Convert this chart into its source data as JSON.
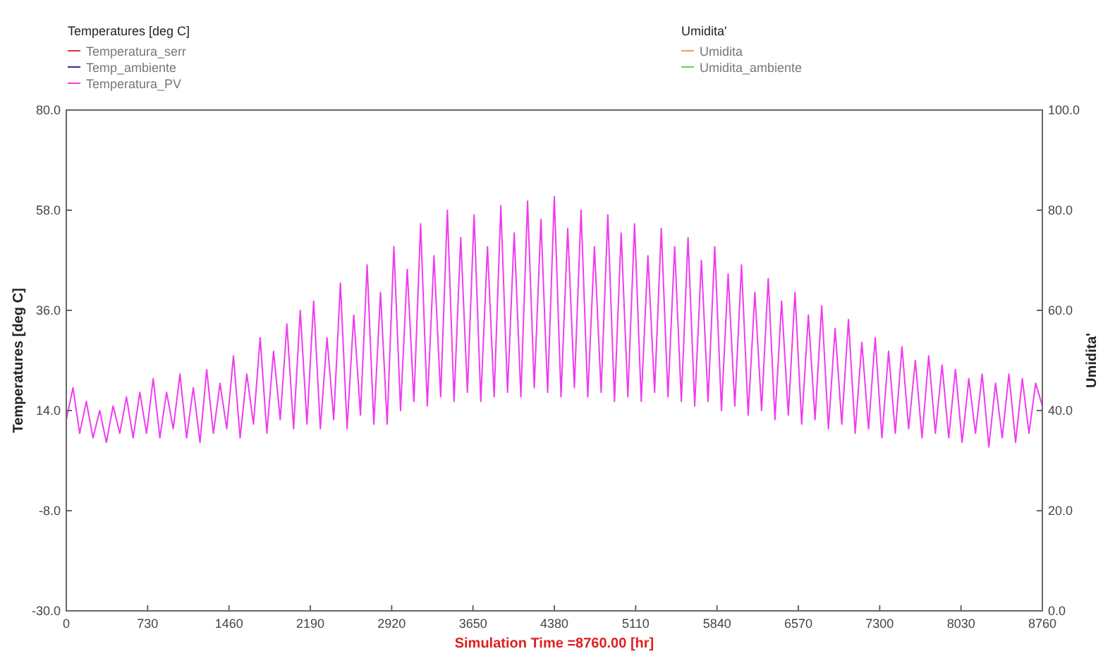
{
  "chart_data": {
    "type": "line",
    "xlabel": "Simulation Time =8760.00 [hr]",
    "ylabel": "Temperatures  [deg C]",
    "y2label": "Umidita'",
    "legend_title": "Temperatures  [deg C]",
    "annotations": [
      "Umidita'"
    ],
    "legend": "top left",
    "grid": false,
    "line_style": "solid",
    "xlim": [
      0,
      8760
    ],
    "xticks": [
      0,
      730,
      1460,
      2190,
      2920,
      3650,
      4380,
      5110,
      5840,
      6570,
      7300,
      8030,
      8760
    ],
    "ylim": [
      -30,
      80
    ],
    "yticks": [
      {
        "value": -30,
        "label": "-30.0"
      },
      {
        "value": -8,
        "label": "-8.0"
      },
      {
        "value": 14,
        "label": "14.0"
      },
      {
        "value": 36,
        "label": "36.0"
      },
      {
        "value": 58,
        "label": "58.0"
      },
      {
        "value": 80,
        "label": "80.0"
      }
    ],
    "y2lim": [
      0,
      100
    ],
    "y2ticks": [
      {
        "value": 0,
        "label": "0.0"
      },
      {
        "value": 20,
        "label": "20.0"
      },
      {
        "value": 40,
        "label": "40.0"
      },
      {
        "value": 60,
        "label": "60.0"
      },
      {
        "value": 80,
        "label": "80.0"
      },
      {
        "value": 100,
        "label": "100.0"
      }
    ],
    "series": [
      {
        "name": "Temperatura_serr",
        "color": "#e03030"
      },
      {
        "name": "Temp_ambiente",
        "color": "#303090"
      },
      {
        "name": "Temperatura_PV",
        "color": "#f03cf0",
        "x": [
          0,
          60,
          120,
          180,
          240,
          300,
          360,
          420,
          480,
          540,
          600,
          660,
          720,
          780,
          840,
          900,
          960,
          1020,
          1080,
          1140,
          1200,
          1260,
          1320,
          1380,
          1440,
          1500,
          1560,
          1620,
          1680,
          1740,
          1800,
          1860,
          1920,
          1980,
          2040,
          2100,
          2160,
          2220,
          2280,
          2340,
          2400,
          2460,
          2520,
          2580,
          2640,
          2700,
          2760,
          2820,
          2880,
          2940,
          3000,
          3060,
          3120,
          3180,
          3240,
          3300,
          3360,
          3420,
          3480,
          3540,
          3600,
          3660,
          3720,
          3780,
          3840,
          3900,
          3960,
          4020,
          4080,
          4140,
          4200,
          4260,
          4320,
          4380,
          4440,
          4500,
          4560,
          4620,
          4680,
          4740,
          4800,
          4860,
          4920,
          4980,
          5040,
          5100,
          5160,
          5220,
          5280,
          5340,
          5400,
          5460,
          5520,
          5580,
          5640,
          5700,
          5760,
          5820,
          5880,
          5940,
          6000,
          6060,
          6120,
          6180,
          6240,
          6300,
          6360,
          6420,
          6480,
          6540,
          6600,
          6660,
          6720,
          6780,
          6840,
          6900,
          6960,
          7020,
          7080,
          7140,
          7200,
          7260,
          7320,
          7380,
          7440,
          7500,
          7560,
          7620,
          7680,
          7740,
          7800,
          7860,
          7920,
          7980,
          8040,
          8100,
          8160,
          8220,
          8280,
          8340,
          8400,
          8460,
          8520,
          8580,
          8640,
          8700,
          8760
        ],
        "values": [
          12,
          19,
          9,
          16,
          8,
          14,
          7,
          15,
          9,
          17,
          8,
          18,
          9,
          21,
          8,
          18,
          10,
          22,
          8,
          19,
          7,
          23,
          9,
          20,
          10,
          26,
          8,
          22,
          11,
          30,
          9,
          27,
          12,
          33,
          10,
          36,
          11,
          38,
          10,
          30,
          12,
          42,
          10,
          35,
          13,
          46,
          11,
          40,
          11,
          50,
          14,
          45,
          16,
          55,
          15,
          48,
          17,
          58,
          16,
          52,
          18,
          57,
          16,
          50,
          17,
          59,
          18,
          53,
          17,
          60,
          19,
          56,
          18,
          61,
          17,
          54,
          19,
          58,
          17,
          50,
          18,
          57,
          16,
          53,
          17,
          55,
          16,
          48,
          18,
          54,
          17,
          50,
          16,
          52,
          15,
          47,
          16,
          50,
          14,
          44,
          15,
          46,
          13,
          40,
          14,
          43,
          12,
          38,
          13,
          40,
          11,
          35,
          12,
          37,
          10,
          32,
          11,
          34,
          9,
          29,
          10,
          30,
          8,
          27,
          9,
          28,
          10,
          25,
          8,
          26,
          9,
          24,
          8,
          23,
          7,
          21,
          9,
          22,
          6,
          20,
          8,
          22,
          7,
          21,
          9,
          20,
          15
        ]
      },
      {
        "name": "Umidita",
        "color": "#f0a040",
        "axis": "y2"
      },
      {
        "name": "Umidita_ambiente",
        "color": "#60d060",
        "axis": "y2"
      }
    ]
  }
}
